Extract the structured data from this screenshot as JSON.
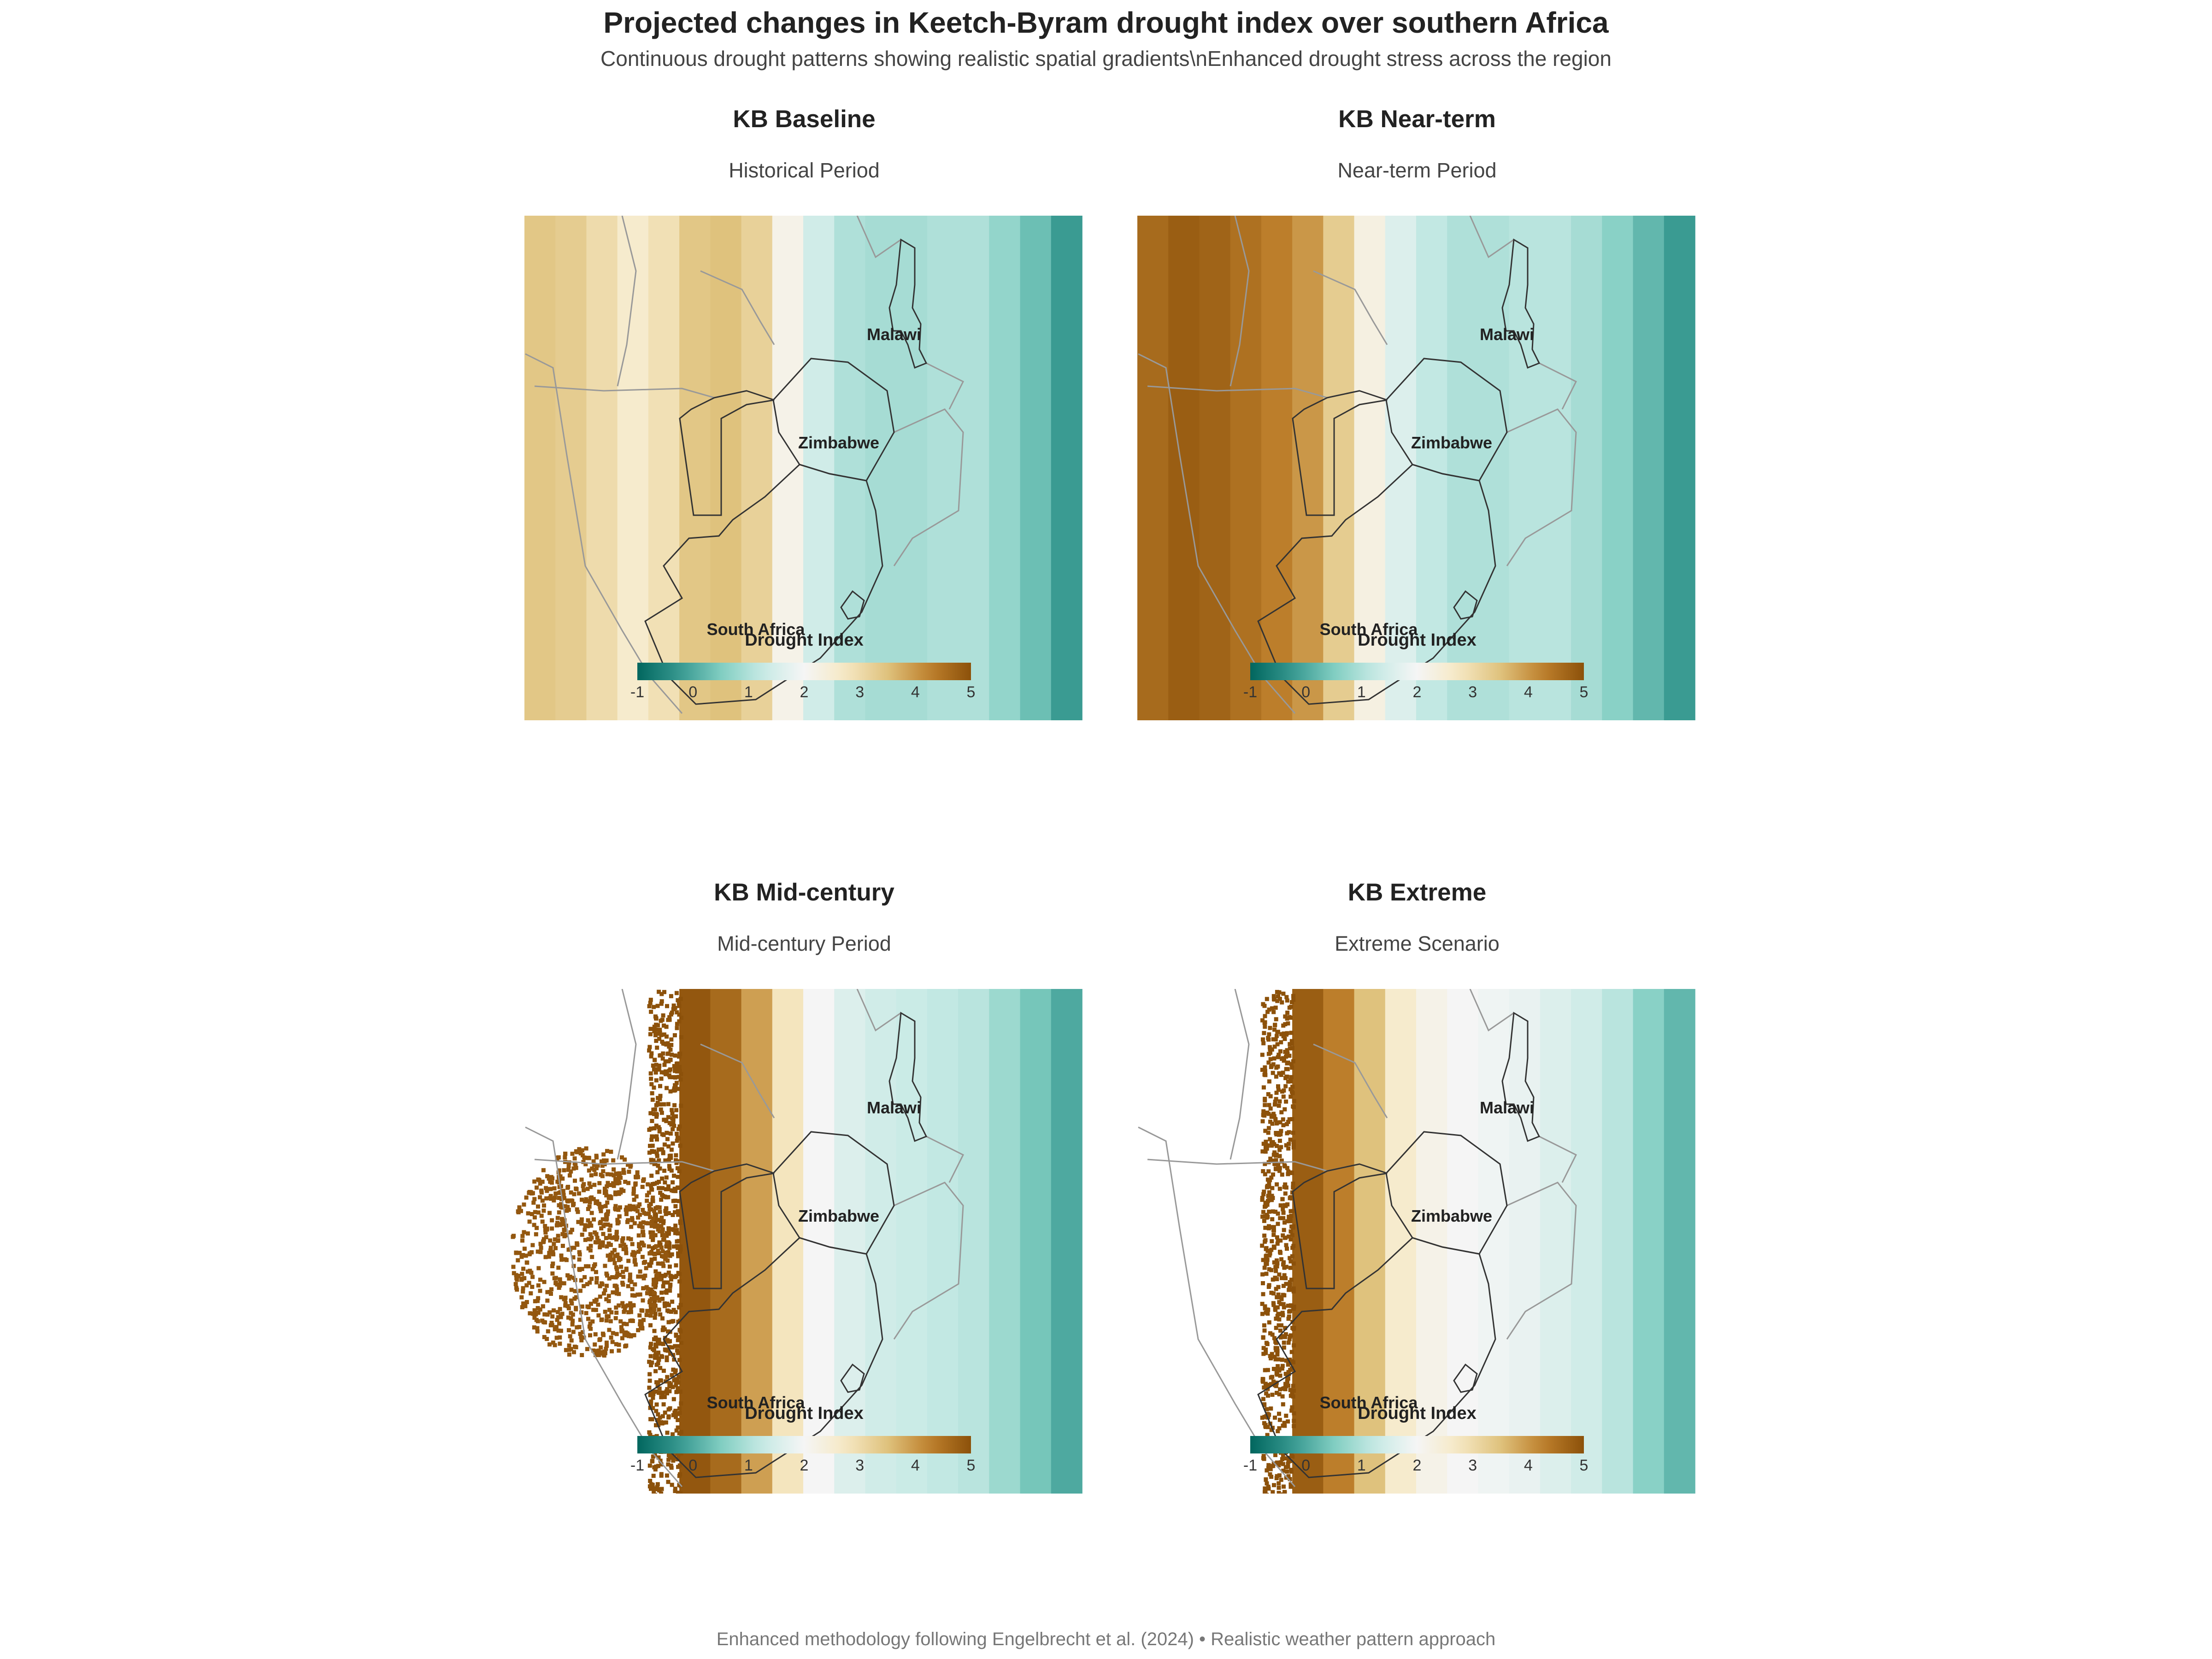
{
  "header": {
    "title": "Projected changes in Keetch-Byram drought index over southern Africa",
    "subtitle": "Continuous drought patterns showing realistic spatial gradients\\nEnhanced drought stress across the region"
  },
  "caption": "Enhanced methodology following Engelbrecht et al. (2024) • Realistic weather pattern approach",
  "colors": {
    "scale": [
      "#01665e",
      "#35978f",
      "#80cdc1",
      "#c7eae5",
      "#f5f5f5",
      "#f6e8c3",
      "#dfc27d",
      "#bf812d",
      "#8c510a"
    ],
    "border_dark": "#333333",
    "border_light": "#999999"
  },
  "chart_data": [
    {
      "type": "heatmap",
      "title": "KB Baseline",
      "subtitle": "Historical Period",
      "legend_title": "Drought Index",
      "color_range": [
        -1,
        5
      ],
      "legend_ticks": [
        "-1",
        "0",
        "1",
        "2",
        "3",
        "4",
        "5"
      ],
      "labels": [
        "Malawi",
        "Zimbabwe",
        "South Africa"
      ],
      "profile": [
        3.4,
        3.3,
        3.0,
        2.6,
        2.9,
        3.4,
        3.5,
        3.2,
        2.2,
        1.4,
        1.0,
        0.9,
        0.9,
        1.0,
        1.0,
        0.7,
        0.3,
        -0.2
      ]
    },
    {
      "type": "heatmap",
      "title": "KB Near-term",
      "subtitle": "Near-term Period",
      "legend_title": "Drought Index",
      "color_range": [
        -1,
        5
      ],
      "legend_ticks": [
        "-1",
        "0",
        "1",
        "2",
        "3",
        "4",
        "5"
      ],
      "labels": [
        "Malawi",
        "Zimbabwe",
        "South Africa"
      ],
      "profile": [
        4.6,
        4.8,
        4.7,
        4.5,
        4.3,
        4.0,
        3.3,
        2.3,
        1.6,
        1.2,
        1.0,
        1.0,
        1.1,
        1.1,
        0.9,
        0.6,
        0.2,
        -0.2
      ]
    },
    {
      "type": "heatmap",
      "title": "KB Mid-century",
      "subtitle": "Mid-century Period",
      "legend_title": "Drought Index",
      "color_range": [
        -1,
        5
      ],
      "legend_ticks": [
        "-1",
        "0",
        "1",
        "2",
        "3",
        "4",
        "5"
      ],
      "labels": [
        "Malawi",
        "Zimbabwe",
        "South Africa"
      ],
      "profile": [
        null,
        null,
        null,
        null,
        null,
        4.9,
        4.6,
        3.9,
        2.8,
        2.0,
        1.6,
        1.4,
        1.3,
        1.2,
        1.1,
        0.8,
        0.4,
        0.0
      ]
    },
    {
      "type": "heatmap",
      "title": "KB Extreme",
      "subtitle": "Extreme Scenario",
      "legend_title": "Drought Index",
      "color_range": [
        -1,
        5
      ],
      "legend_ticks": [
        "-1",
        "0",
        "1",
        "2",
        "3",
        "4",
        "5"
      ],
      "labels": [
        "Malawi",
        "Zimbabwe",
        "South Africa"
      ],
      "profile": [
        null,
        null,
        null,
        null,
        null,
        4.8,
        4.3,
        3.5,
        2.6,
        2.2,
        2.0,
        1.9,
        1.8,
        1.6,
        1.4,
        1.1,
        0.6,
        0.2
      ]
    }
  ]
}
